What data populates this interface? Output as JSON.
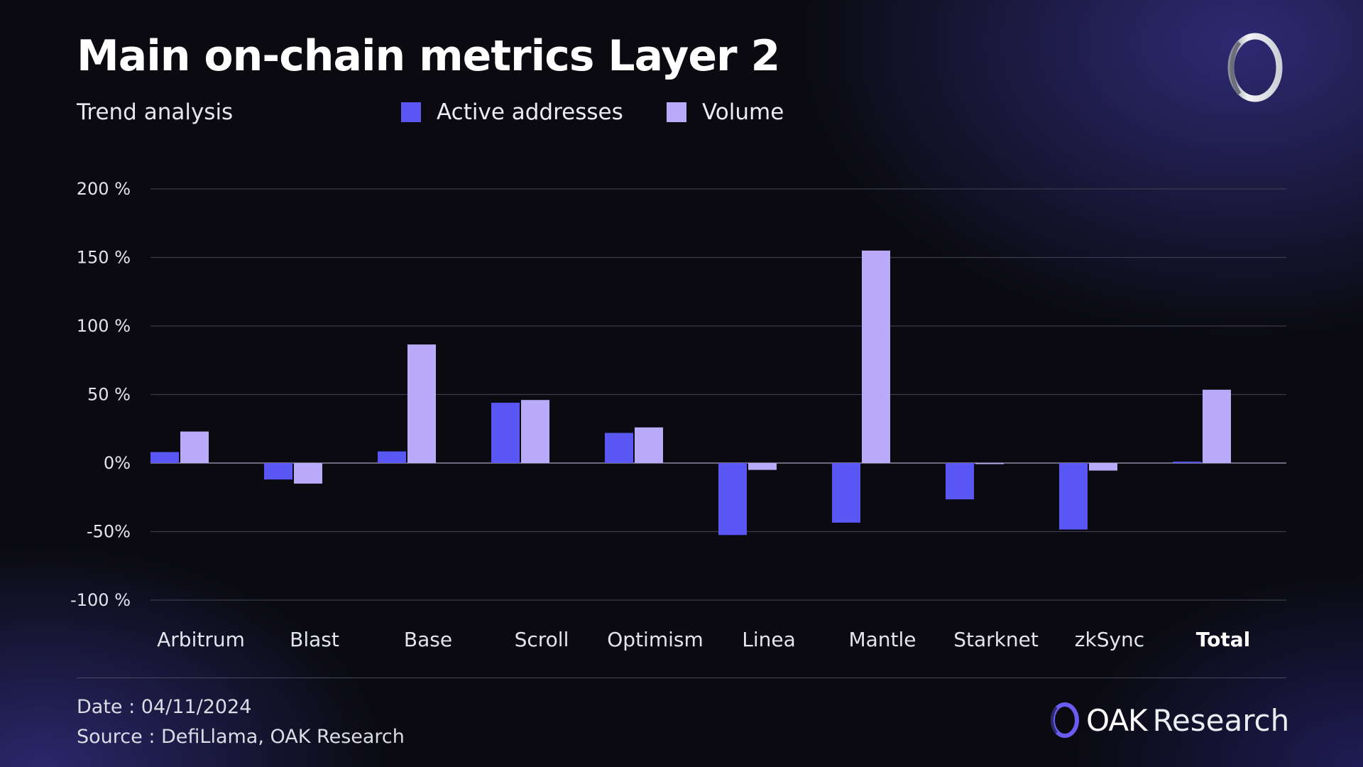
{
  "header": {
    "title": "Main on-chain metrics Layer 2",
    "subtitle": "Trend analysis"
  },
  "colors": {
    "active": "#5b57f5",
    "volume": "#b9abf9",
    "grid": "#3b3b4b",
    "zero": "#8a8aa0",
    "axis_text": "#e4e4ec"
  },
  "chart_data": {
    "type": "bar",
    "title": "Main on-chain metrics Layer 2",
    "subtitle": "Trend analysis",
    "xlabel": "",
    "ylabel": "",
    "ylim": [
      -100,
      200
    ],
    "yticks": [
      {
        "value": 200,
        "label": "200 %"
      },
      {
        "value": 150,
        "label": "150 %"
      },
      {
        "value": 100,
        "label": "100 %"
      },
      {
        "value": 50,
        "label": "50 %"
      },
      {
        "value": 0,
        "label": "0%"
      },
      {
        "value": -50,
        "label": "-50%"
      },
      {
        "value": -100,
        "label": "-100 %"
      }
    ],
    "categories": [
      "Arbitrum",
      "Blast",
      "Base",
      "Scroll",
      "Optimism",
      "Linea",
      "Mantle",
      "Starknet",
      "zkSync",
      "Total"
    ],
    "bold_categories": [
      "Total"
    ],
    "series": [
      {
        "name": "Active addresses",
        "color": "#5b57f5",
        "values": [
          8,
          -12,
          8.5,
          44,
          22,
          -52.5,
          -43.5,
          -26.5,
          -48.5,
          1
        ]
      },
      {
        "name": "Volume",
        "color": "#b9abf9",
        "values": [
          23,
          -15,
          86.5,
          46,
          26,
          -5,
          155,
          -0.5,
          -5.5,
          53.5
        ]
      }
    ],
    "legend": "top",
    "grid": true
  },
  "footer": {
    "date": "Date : 04/11/2024",
    "source": "Source : DefiLlama, OAK Research",
    "brand_bold": "OAK",
    "brand_rest": "Research"
  },
  "icons": {
    "top_logo": "ring-logo-icon",
    "brand_logo": "ring-logo-icon"
  }
}
